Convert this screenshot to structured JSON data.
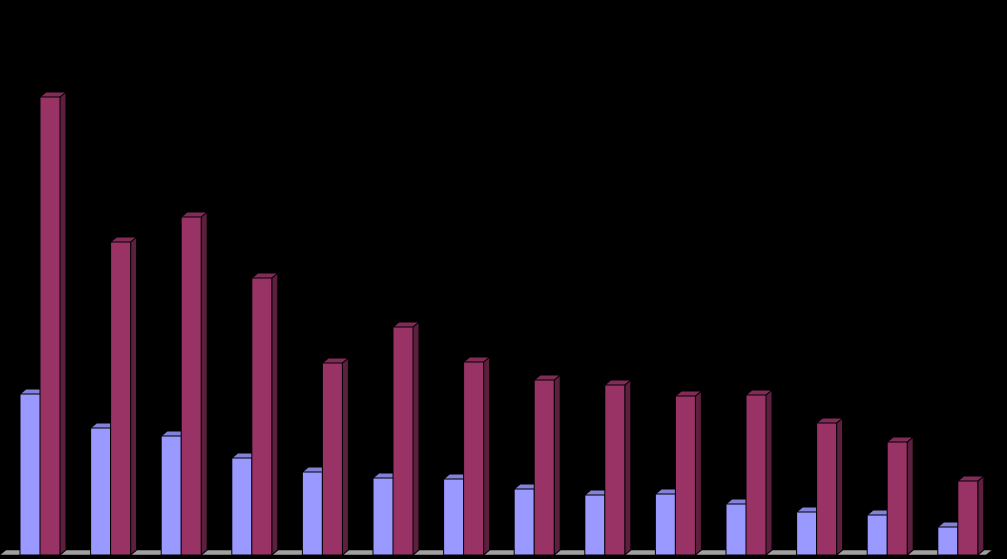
{
  "chart_data": {
    "type": "bar3d",
    "categories": [
      null,
      null,
      null,
      null,
      null,
      null,
      null,
      null,
      null,
      null,
      null,
      null,
      null,
      null
    ],
    "series": [
      {
        "color": "#9999ff",
        "values": [
          161,
          127,
          119,
          97,
          83,
          77,
          76,
          66,
          60,
          61,
          51,
          43,
          40,
          28
        ]
      },
      {
        "color": "#993366",
        "values": [
          458,
          313,
          338,
          277,
          192,
          228,
          193,
          175,
          170,
          159,
          160,
          132,
          113,
          74
        ]
      }
    ],
    "ylim": [
      0,
      460
    ]
  }
}
